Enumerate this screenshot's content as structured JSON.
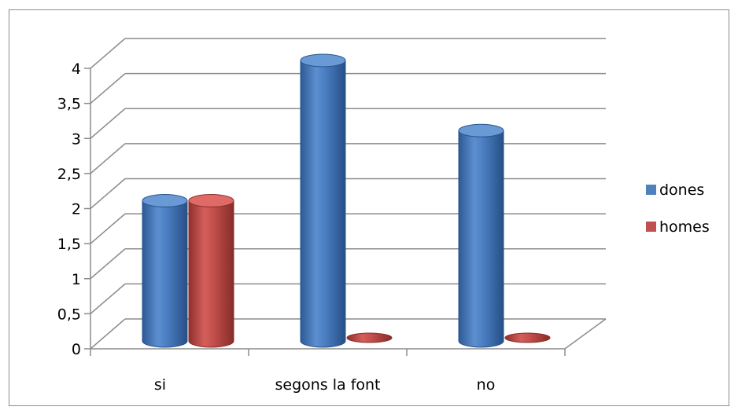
{
  "chart_data": {
    "type": "bar",
    "style": "3d-cylinder",
    "categories": [
      "si",
      "segons la font",
      "no"
    ],
    "series": [
      {
        "name": "dones",
        "values": [
          2,
          4,
          3
        ],
        "color": "#4F81BD"
      },
      {
        "name": "homes",
        "values": [
          2,
          0,
          0
        ],
        "color": "#C0504D"
      }
    ],
    "y_ticks": [
      "0",
      "0,5",
      "1",
      "1,5",
      "2",
      "2,5",
      "3",
      "3,5",
      "4"
    ],
    "ylim": [
      0,
      4
    ],
    "grid": true,
    "legend": "right"
  }
}
